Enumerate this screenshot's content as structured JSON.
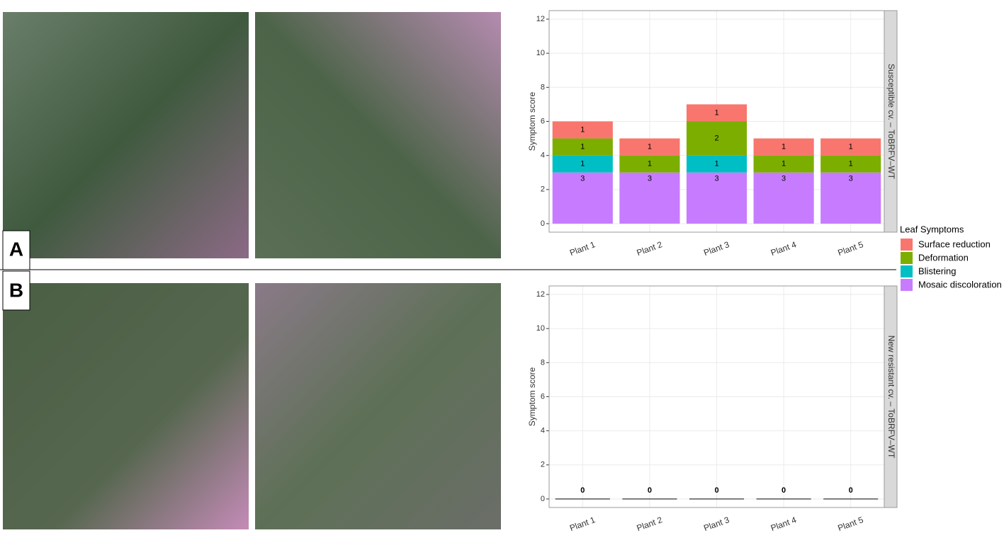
{
  "panels": [
    "A",
    "B"
  ],
  "chart_data": [
    {
      "type": "stacked_bar",
      "strip_label": "Susceptible cv. – ToBRFV–WT",
      "y_label": "Symptom score",
      "legend_title": "Leaf Symptoms",
      "categories": [
        "Plant 1",
        "Plant 2",
        "Plant 3",
        "Plant 4",
        "Plant 5"
      ],
      "series": [
        {
          "name": "Mosaic discoloration",
          "color": "#C77CFF",
          "values": [
            3,
            3,
            3,
            3,
            3
          ]
        },
        {
          "name": "Blistering",
          "color": "#00BFC4",
          "values": [
            1,
            0,
            1,
            0,
            0
          ]
        },
        {
          "name": "Deformation",
          "color": "#7CAE00",
          "values": [
            1,
            1,
            2,
            1,
            1
          ]
        },
        {
          "name": "Surface reduction",
          "color": "#F8766D",
          "values": [
            1,
            1,
            1,
            1,
            1
          ]
        }
      ],
      "ylim": [
        -0.5,
        12.5
      ],
      "yticks": [
        0,
        2,
        4,
        6,
        8,
        10,
        12
      ],
      "grid": true
    },
    {
      "type": "bar",
      "strip_label": "New resistant cv. – ToBRFV–WT",
      "y_label": "Symptom score",
      "categories": [
        "Plant 1",
        "Plant 2",
        "Plant 3",
        "Plant 4",
        "Plant 5"
      ],
      "values": [
        0,
        0,
        0,
        0,
        0
      ],
      "color": "#000000",
      "ylim": [
        -0.5,
        12.5
      ],
      "yticks": [
        0,
        2,
        4,
        6,
        8,
        10,
        12
      ],
      "grid": true
    }
  ]
}
